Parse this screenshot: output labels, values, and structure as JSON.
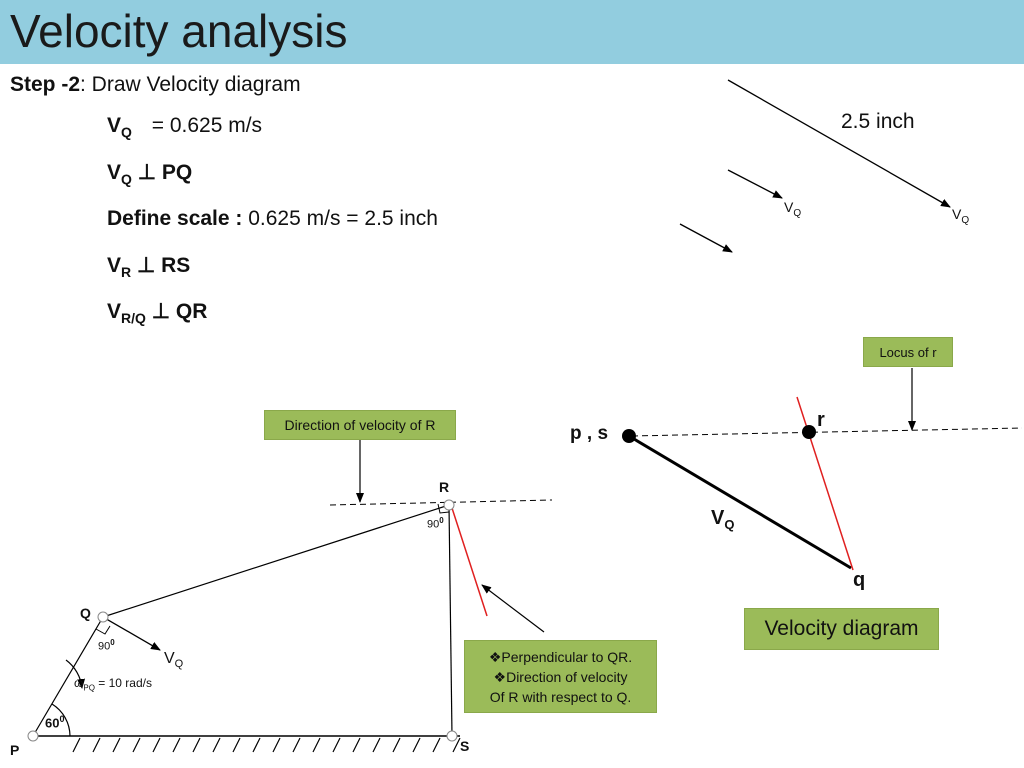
{
  "title": "Velocity analysis",
  "step": {
    "label": "Step -2",
    "text": ": Draw Velocity diagram"
  },
  "lines": {
    "vq_symbol": "V",
    "vq_sub": "Q",
    "vq_value": "= 0.625 m/s",
    "vq_perp_text": "V",
    "vq_perp_sub": "Q",
    "vq_perp_rest": " ⊥ PQ",
    "scale_label": "Define scale :",
    "scale_value": " 0.625 m/s = 2.5 inch",
    "vr_text": "V",
    "vr_sub": "R",
    "vr_rest": " ⊥ RS",
    "vrq_text": "V",
    "vrq_sub": "R/Q",
    "vrq_rest": " ⊥ QR"
  },
  "scale_arrows": {
    "length_label": "2.5 inch",
    "vq_label_1": "V",
    "vq_sub_1": "Q",
    "vq_label_2": "V",
    "vq_sub_2": "Q"
  },
  "mechanism": {
    "box_direction": "Direction of velocity of R",
    "label_R": "R",
    "label_Q": "Q",
    "label_P": "P",
    "label_S": "S",
    "angle_R": "90",
    "angle_Q": "90",
    "angle_P": "60",
    "deg": "0",
    "vq_arrow_label": "V",
    "vq_arrow_sub": "Q",
    "omega_label": "ω",
    "omega_sub": "PQ",
    "omega_value": " = 10 rad/s",
    "perp_box_line1": "❖Perpendicular to QR.",
    "perp_box_line2": "❖Direction of velocity",
    "perp_box_line3": "Of R with respect to Q."
  },
  "velocity_diagram": {
    "locus_box": "Locus of r",
    "label_ps": "p , s",
    "label_r": "r",
    "label_q": "q",
    "vq_label": "V",
    "vq_sub": "Q",
    "caption": "Velocity diagram"
  },
  "colors": {
    "title_bar": "#92cddf",
    "green_box": "#9bbb59",
    "red_line": "#e02020"
  }
}
